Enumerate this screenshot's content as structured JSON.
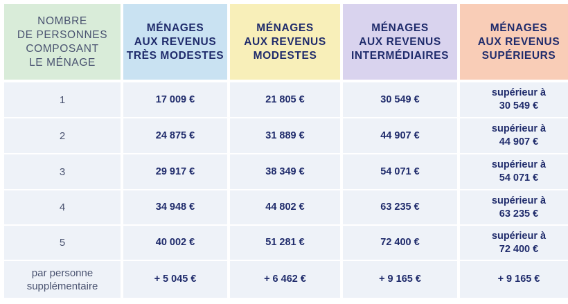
{
  "colors": {
    "col1_header": "#d9ecd9",
    "col2_header": "#c9e2f2",
    "col3_header": "#f8efb9",
    "col4_header": "#d9d3ee",
    "col5_header": "#f9cdb7",
    "body_bg": "#eef2f8",
    "text_dark": "#1f2b6b"
  },
  "headers": [
    "NOMBRE\nDE PERSONNES\nCOMPOSANT\nLE MÉNAGE",
    "MÉNAGES\nAUX REVENUS\nTRÈS MODESTES",
    "MÉNAGES\nAUX REVENUS\nMODESTES",
    "MÉNAGES\nAUX REVENUS\nINTERMÉDIAIRES",
    "MÉNAGES\nAUX REVENUS\nSUPÉRIEURS"
  ],
  "rows": [
    [
      "1",
      "17 009 €",
      "21 805 €",
      "30 549 €",
      "supérieur à\n30 549 €"
    ],
    [
      "2",
      "24 875 €",
      "31 889 €",
      "44 907 €",
      "supérieur à\n44 907 €"
    ],
    [
      "3",
      "29 917 €",
      "38 349 €",
      "54 071 €",
      "supérieur à\n54 071 €"
    ],
    [
      "4",
      "34 948 €",
      "44 802 €",
      "63 235 €",
      "supérieur à\n63 235 €"
    ],
    [
      "5",
      "40 002 €",
      "51 281 €",
      "72 400 €",
      "supérieur à\n72 400 €"
    ],
    [
      "par personne\nsupplémentaire",
      "+ 5 045 €",
      "+ 6 462 €",
      "+ 9 165 €",
      "+ 9 165 €"
    ]
  ]
}
